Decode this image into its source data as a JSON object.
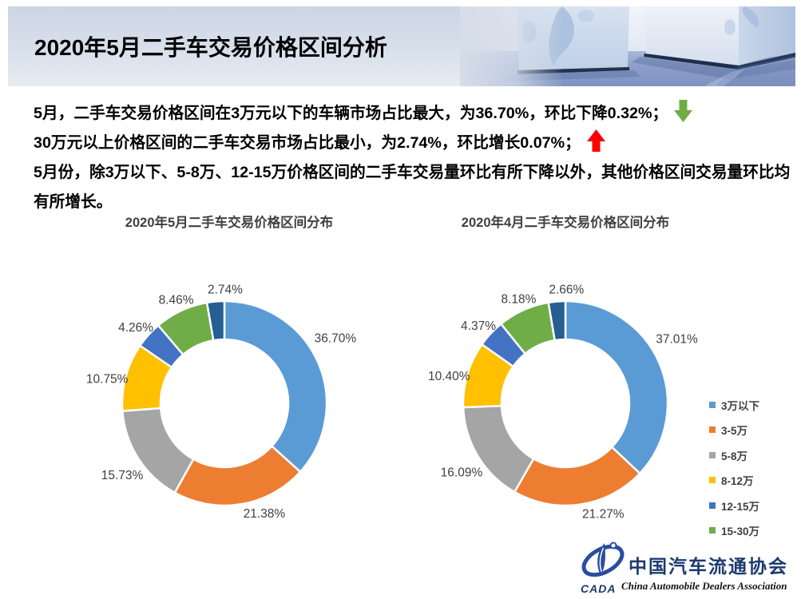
{
  "header": {
    "title": "2020年5月二手车交易价格区间分析"
  },
  "summary": {
    "line1": "5月，二手车交易价格区间在3万元以下的车辆市场占比最大，为36.70%，环比下降0.32%；",
    "line1_indicator": "down-arrow",
    "line2": "30万元以上价格区间的二手车交易市场占比最小，为2.74%，环比增长0.07%；",
    "line2_indicator": "up-arrow",
    "line3": "5月份，除3万以下、5-8万、12-15万价格区间的二手车交易量环比有所下降以外，其他价格区间交易量环比均",
    "line4": "有所增长。"
  },
  "indicator_colors": {
    "down": "#6FAC46",
    "up": "#FF0000"
  },
  "palette": [
    "#5B9BD5",
    "#ED7D31",
    "#A5A5A5",
    "#FFC000",
    "#4472C4",
    "#70AD47",
    "#255E91"
  ],
  "chart_data": [
    {
      "type": "donut",
      "title": "2020年5月二手车交易价格区间分布",
      "categories": [
        "3万以下",
        "3-5万",
        "5-8万",
        "8-12万",
        "12-15万",
        "15-30万",
        ""
      ],
      "values": [
        36.7,
        21.38,
        15.73,
        10.75,
        4.26,
        8.46,
        2.74
      ],
      "unit": "%",
      "legend_visible": false
    },
    {
      "type": "donut",
      "title": "2020年4月二手车交易价格区间分布",
      "categories": [
        "3万以下",
        "3-5万",
        "5-8万",
        "8-12万",
        "12-15万",
        "15-30万",
        ""
      ],
      "values": [
        37.01,
        21.27,
        16.09,
        10.4,
        4.37,
        8.18,
        2.66
      ],
      "unit": "%",
      "legend_visible": true,
      "legend_position": "right"
    }
  ],
  "legend": {
    "items": [
      {
        "label": "3万以下",
        "color": "#5B9BD5"
      },
      {
        "label": "3-5万",
        "color": "#ED7D31"
      },
      {
        "label": "5-8万",
        "color": "#A5A5A5"
      },
      {
        "label": "8-12万",
        "color": "#FFC000"
      },
      {
        "label": "12-15万",
        "color": "#4472C4"
      },
      {
        "label": "15-30万",
        "color": "#70AD47"
      }
    ]
  },
  "footer_logo": {
    "acronym": "CADA",
    "name_cn": "中国汽车流通协会",
    "name_en": "China Automobile Dealers Association"
  }
}
